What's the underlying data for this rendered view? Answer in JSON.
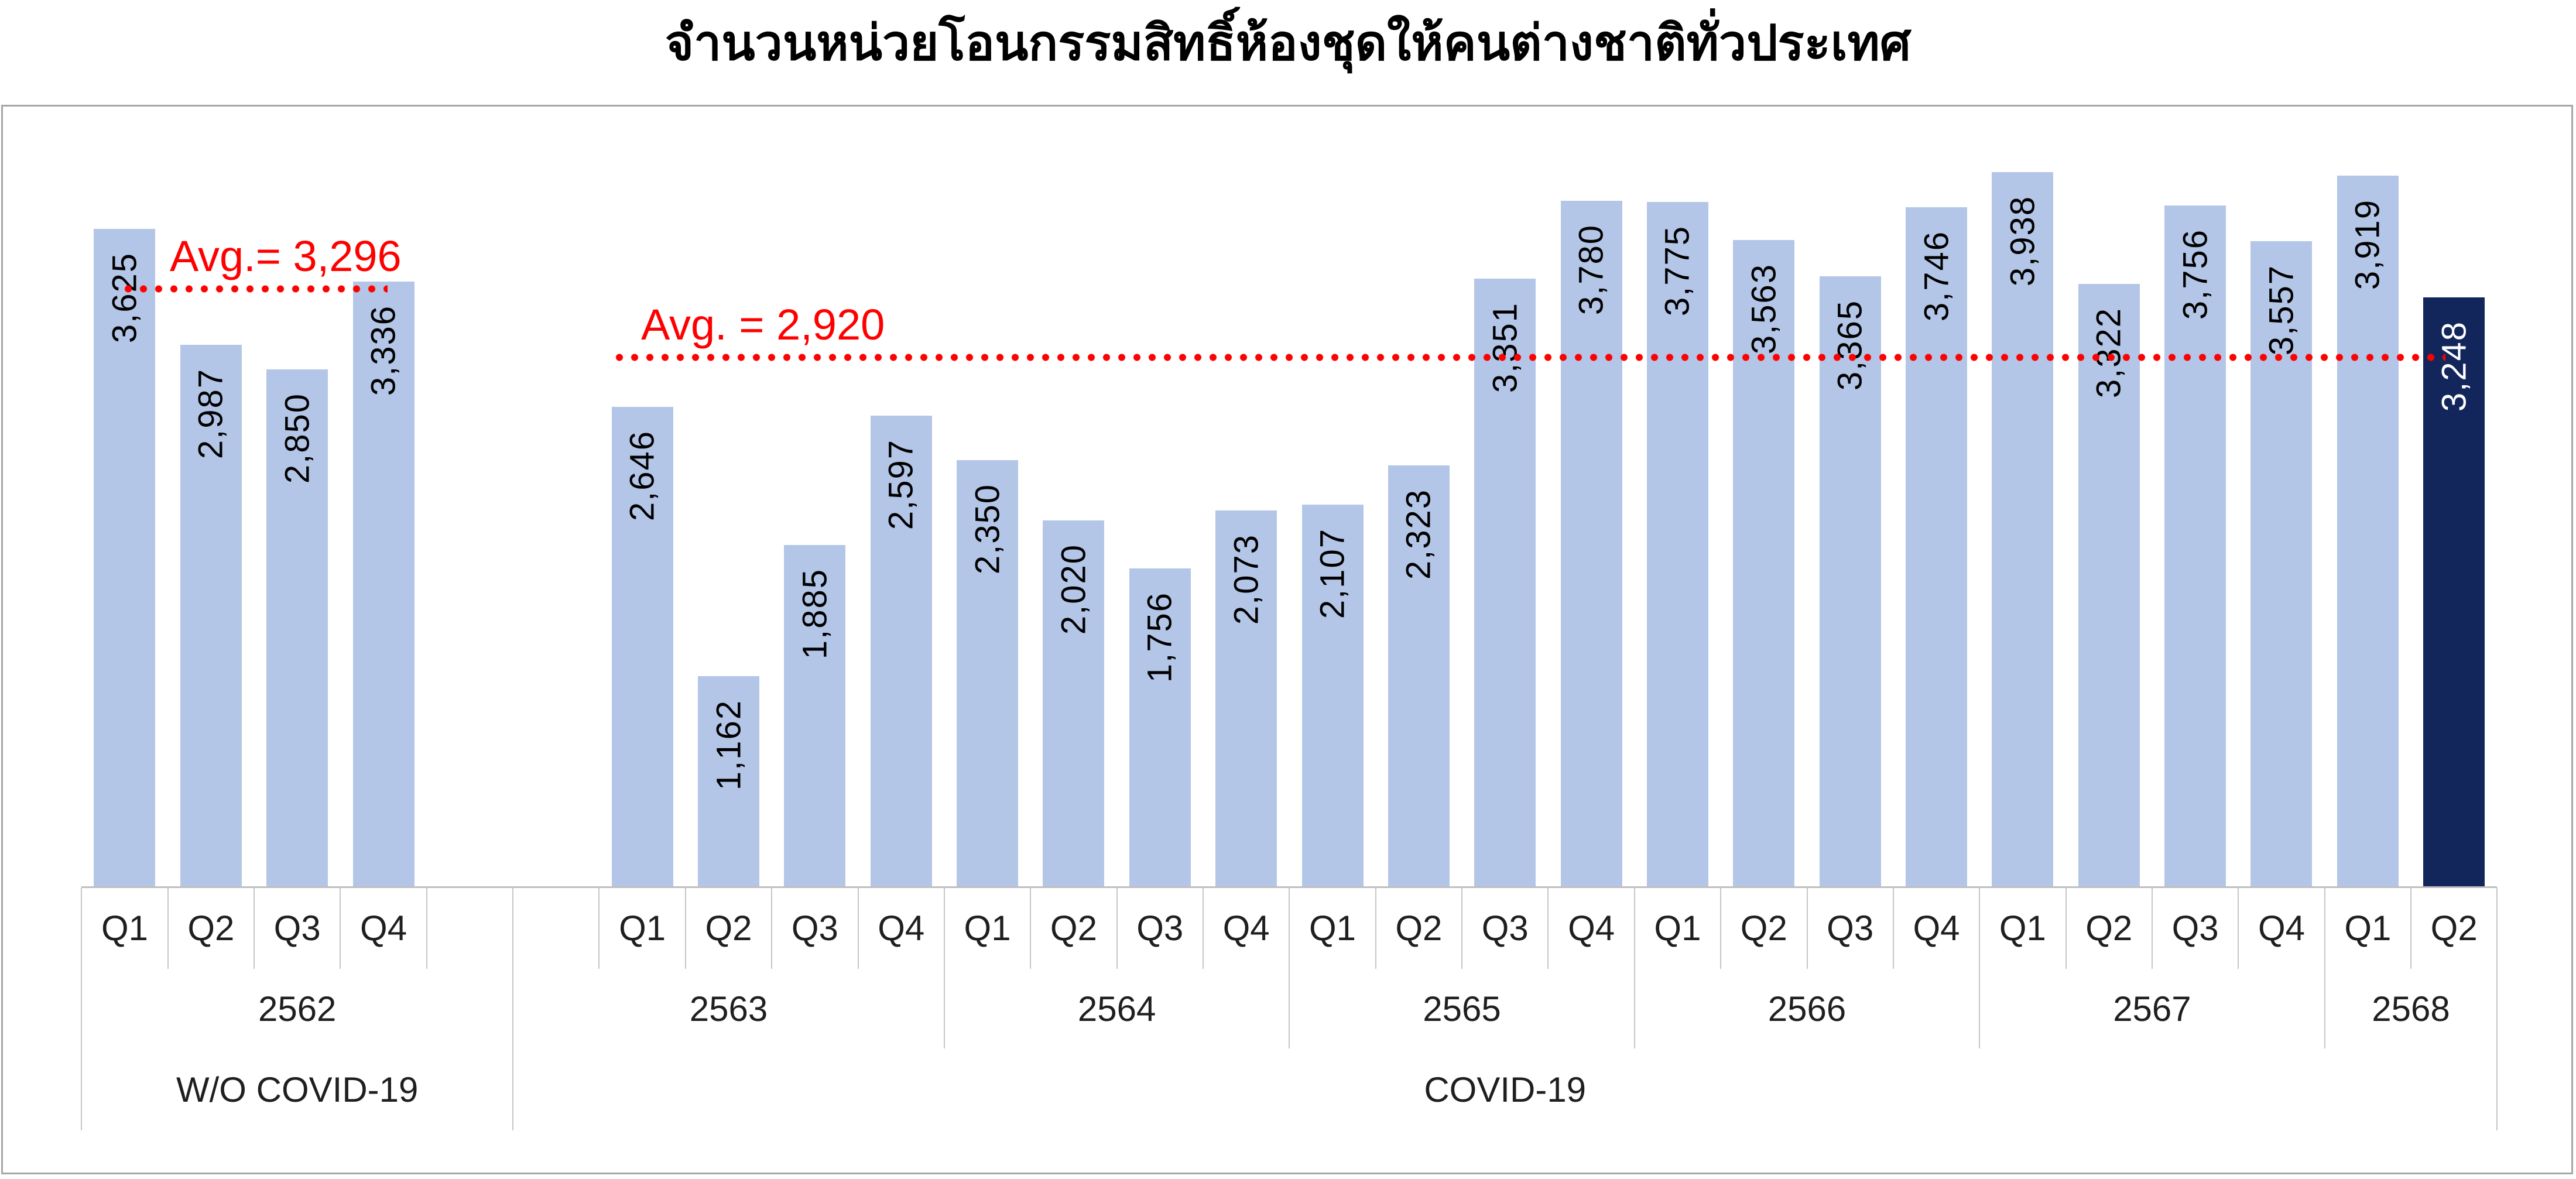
{
  "chart_data": {
    "type": "bar",
    "title": "จำนวนหน่วยโอนกรรมสิทธิ์ห้องชุดให้คนต่างชาติทั่วประเทศ",
    "value_label_style": "rotated-inside-end",
    "grid": false,
    "legend": false,
    "y_axis_visible": false,
    "ylim": [
      0,
      4300
    ],
    "colors": {
      "bar": "#B4C6E7",
      "highlight_bar": "#13265B",
      "highlight_value_text": "#FFFFFF",
      "avg_line": "#FF0000",
      "axis_text": "#1F1F1F",
      "frame_border": "#A6A6A6"
    },
    "groups": [
      {
        "label": "W/O COVID-19",
        "avg_label": "Avg.= 3,296",
        "avg_value": 3296,
        "years": [
          {
            "label": "2562",
            "quarters": [
              "Q1",
              "Q2",
              "Q3",
              "Q4"
            ],
            "values": [
              3625,
              2987,
              2850,
              3336
            ]
          }
        ]
      },
      {
        "label": "COVID-19",
        "avg_label": "Avg. = 2,920",
        "avg_value": 2920,
        "years": [
          {
            "label": "2563",
            "quarters": [
              "Q1",
              "Q2",
              "Q3",
              "Q4"
            ],
            "values": [
              2646,
              1162,
              1885,
              2597
            ]
          },
          {
            "label": "2564",
            "quarters": [
              "Q1",
              "Q2",
              "Q3",
              "Q4"
            ],
            "values": [
              2350,
              2020,
              1756,
              2073
            ]
          },
          {
            "label": "2565",
            "quarters": [
              "Q1",
              "Q2",
              "Q3",
              "Q4"
            ],
            "values": [
              2107,
              2323,
              3351,
              3780
            ]
          },
          {
            "label": "2566",
            "quarters": [
              "Q1",
              "Q2",
              "Q3",
              "Q4"
            ],
            "values": [
              3775,
              3563,
              3365,
              3746
            ]
          },
          {
            "label": "2567",
            "quarters": [
              "Q1",
              "Q2",
              "Q3",
              "Q4"
            ],
            "values": [
              3938,
              3322,
              3756,
              3557
            ]
          },
          {
            "label": "2568",
            "quarters": [
              "Q1",
              "Q2"
            ],
            "values": [
              3919,
              3248
            ]
          }
        ]
      }
    ],
    "highlight": {
      "year": "2568",
      "quarter": "Q2",
      "value": 3248
    }
  }
}
